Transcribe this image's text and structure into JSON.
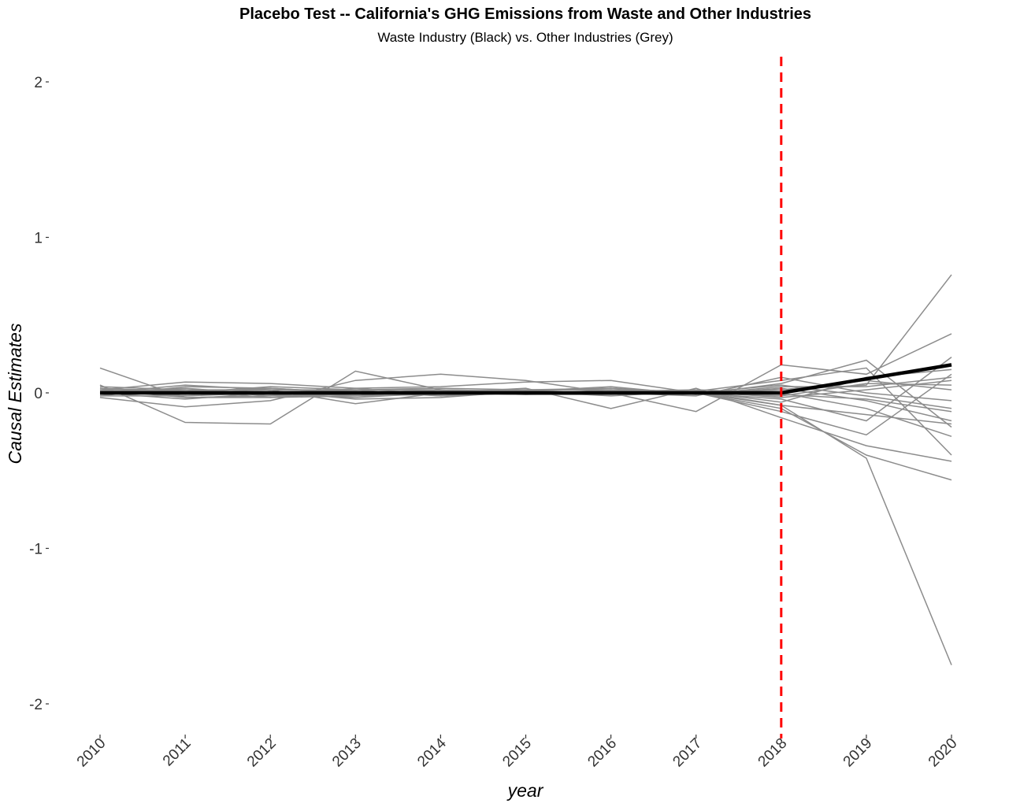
{
  "chart_data": {
    "type": "line",
    "title": "Placebo Test -- California's GHG Emissions from Waste and Other Industries",
    "subtitle": "Waste Industry (Black) vs. Other Industries (Grey)",
    "xlabel": "year",
    "ylabel": "Causal Estimates",
    "x": [
      2010,
      2011,
      2012,
      2013,
      2014,
      2015,
      2016,
      2017,
      2018,
      2019,
      2020
    ],
    "xlim": [
      2010,
      2020
    ],
    "ylim": [
      -2.2,
      2.2
    ],
    "y_ticks": [
      2,
      1,
      0,
      -1,
      -2
    ],
    "y_tick_labels": [
      "2",
      "1",
      "0",
      "-1",
      "-2"
    ],
    "x_tick_labels": [
      "2010",
      "2011",
      "2012",
      "2013",
      "2014",
      "2015",
      "2016",
      "2017",
      "2018",
      "2019",
      "2020"
    ],
    "grid": false,
    "legend": "none",
    "treatment_line": {
      "x": 2018,
      "color": "#ff0000",
      "style": "dashed"
    },
    "main_series": {
      "color": "#000000",
      "values": [
        0.0,
        0.0,
        0.0,
        0.0,
        0.0,
        0.0,
        0.0,
        0.0,
        0.0,
        0.09,
        0.18
      ]
    },
    "placebo_color": "#8c8c8c",
    "placebo_series": [
      [
        0.16,
        -0.03,
        -0.03,
        -0.02,
        -0.01,
        0.0,
        0.0,
        0.0,
        0.02,
        0.05,
        0.76
      ],
      [
        0.05,
        -0.19,
        -0.2,
        0.14,
        0.02,
        0.0,
        0.01,
        0.0,
        -0.08,
        -0.42,
        -1.75
      ],
      [
        -0.03,
        -0.09,
        -0.05,
        0.08,
        0.12,
        0.08,
        0.0,
        -0.12,
        0.18,
        0.12,
        0.38
      ],
      [
        0.02,
        0.07,
        0.06,
        0.03,
        0.04,
        0.07,
        0.08,
        0.0,
        -0.1,
        -0.4,
        -0.56
      ],
      [
        0.0,
        0.05,
        0.02,
        -0.07,
        0.0,
        0.03,
        -0.1,
        0.03,
        -0.16,
        -0.34,
        -0.44
      ],
      [
        0.03,
        0.0,
        0.04,
        0.02,
        0.02,
        0.01,
        0.04,
        -0.01,
        0.06,
        0.21,
        -0.22
      ],
      [
        0.01,
        -0.02,
        0.01,
        -0.04,
        -0.03,
        0.01,
        0.03,
        0.0,
        -0.04,
        -0.18,
        0.23
      ],
      [
        0.0,
        0.03,
        -0.01,
        0.01,
        0.0,
        -0.01,
        0.0,
        0.01,
        0.08,
        0.16,
        -0.4
      ],
      [
        -0.02,
        0.04,
        0.03,
        0.0,
        0.01,
        0.02,
        0.02,
        0.0,
        -0.12,
        -0.27,
        0.12
      ],
      [
        0.02,
        -0.03,
        -0.02,
        0.03,
        -0.01,
        0.0,
        0.01,
        0.02,
        0.0,
        -0.1,
        -0.28
      ],
      [
        0.04,
        0.02,
        0.0,
        -0.02,
        0.02,
        0.01,
        -0.02,
        0.01,
        -0.06,
        0.1,
        0.15
      ],
      [
        -0.01,
        0.0,
        0.02,
        0.01,
        -0.02,
        0.0,
        0.0,
        -0.01,
        0.03,
        -0.05,
        -0.18
      ],
      [
        0.01,
        0.01,
        -0.03,
        0.0,
        0.01,
        0.02,
        0.03,
        0.0,
        -0.02,
        0.06,
        0.05
      ],
      [
        0.0,
        -0.01,
        0.01,
        -0.01,
        0.0,
        -0.01,
        -0.01,
        0.0,
        0.05,
        -0.02,
        -0.1
      ],
      [
        0.02,
        0.02,
        0.02,
        0.02,
        0.03,
        0.02,
        0.02,
        0.01,
        -0.03,
        0.02,
        0.08
      ],
      [
        -0.02,
        -0.02,
        0.0,
        0.01,
        -0.01,
        0.01,
        0.0,
        -0.02,
        0.1,
        0.0,
        -0.05
      ],
      [
        0.01,
        0.0,
        -0.01,
        -0.03,
        0.0,
        0.0,
        0.01,
        0.01,
        -0.08,
        -0.14,
        -0.2
      ],
      [
        0.03,
        0.01,
        0.03,
        0.0,
        0.02,
        -0.01,
        0.02,
        0.0,
        0.02,
        0.08,
        0.02
      ],
      [
        0.0,
        -0.04,
        0.0,
        0.02,
        -0.02,
        0.01,
        -0.01,
        0.01,
        -0.01,
        -0.04,
        -0.12
      ],
      [
        0.01,
        0.02,
        -0.02,
        -0.01,
        0.01,
        0.0,
        0.01,
        -0.01,
        0.04,
        0.04,
        0.1
      ]
    ]
  }
}
